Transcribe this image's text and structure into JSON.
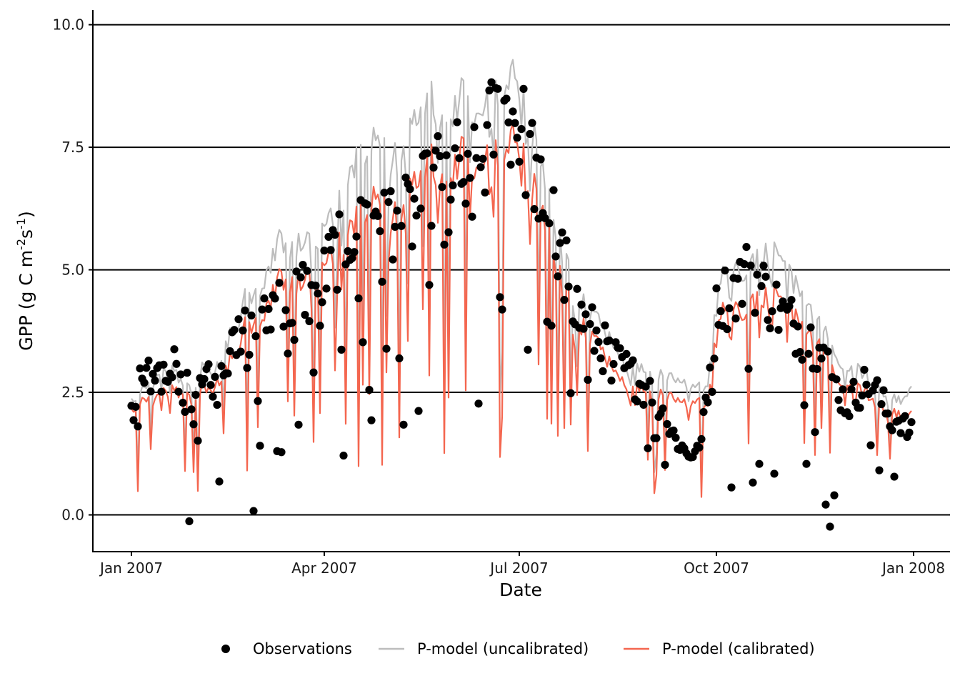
{
  "chart_data": {
    "type": "line",
    "title": "",
    "xlabel": "Date",
    "ylabel": "GPP (g C m",
    "ylabel_sup1": "-2",
    "ylabel_mid": "s",
    "ylabel_sup2": "-1",
    "ylabel_end": ")",
    "x_start": "2007-01-01",
    "x_end": "2007-12-31",
    "xlim": [
      "2006-12-14",
      "2008-01-18"
    ],
    "ylim": [
      -0.75,
      10.3
    ],
    "x_ticks": [
      {
        "date": "2007-01-01",
        "label": "Jan 2007"
      },
      {
        "date": "2007-04-01",
        "label": "Apr 2007"
      },
      {
        "date": "2007-07-01",
        "label": "Jul 2007"
      },
      {
        "date": "2007-10-01",
        "label": "Oct 2007"
      },
      {
        "date": "2008-01-01",
        "label": "Jan 2008"
      }
    ],
    "y_ticks": [
      {
        "value": 0,
        "label": "0.0"
      },
      {
        "value": 2.5,
        "label": "2.5"
      },
      {
        "value": 5,
        "label": "5.0"
      },
      {
        "value": 7.5,
        "label": "7.5"
      },
      {
        "value": 10,
        "label": "10.0"
      }
    ],
    "grid": "horizontal major lines",
    "legend_position": "bottom",
    "series": [
      {
        "name": "Observations",
        "kind": "points",
        "color": "#000000",
        "anchors": [
          [
            1,
            2.2
          ],
          [
            5,
            2.8
          ],
          [
            9,
            2.9
          ],
          [
            13,
            3.0
          ],
          [
            17,
            3.1
          ],
          [
            21,
            3.3
          ],
          [
            25,
            2.7
          ],
          [
            30,
            2.5
          ],
          [
            35,
            2.9
          ],
          [
            40,
            2.6
          ],
          [
            45,
            3.2
          ],
          [
            50,
            3.6
          ],
          [
            55,
            3.9
          ],
          [
            60,
            3.8
          ],
          [
            65,
            4.2
          ],
          [
            70,
            4.8
          ],
          [
            75,
            4.4
          ],
          [
            80,
            4.8
          ],
          [
            85,
            4.6
          ],
          [
            90,
            4.9
          ],
          [
            95,
            5.4
          ],
          [
            100,
            5.8
          ],
          [
            105,
            6.1
          ],
          [
            110,
            6.3
          ],
          [
            115,
            6.5
          ],
          [
            120,
            6.3
          ],
          [
            125,
            6.0
          ],
          [
            130,
            6.2
          ],
          [
            135,
            6.4
          ],
          [
            140,
            6.8
          ],
          [
            145,
            7.2
          ],
          [
            150,
            7.3
          ],
          [
            155,
            7.2
          ],
          [
            160,
            7.0
          ],
          [
            165,
            7.5
          ],
          [
            170,
            8.2
          ],
          [
            175,
            8.5
          ],
          [
            180,
            8.4
          ],
          [
            185,
            7.8
          ],
          [
            190,
            7.2
          ],
          [
            195,
            6.4
          ],
          [
            200,
            5.8
          ],
          [
            205,
            5.0
          ],
          [
            210,
            4.2
          ],
          [
            215,
            3.9
          ],
          [
            220,
            3.6
          ],
          [
            225,
            3.3
          ],
          [
            230,
            3.1
          ],
          [
            235,
            2.9
          ],
          [
            240,
            2.7
          ],
          [
            245,
            2.5
          ],
          [
            250,
            2.0
          ],
          [
            255,
            1.6
          ],
          [
            260,
            1.3
          ],
          [
            265,
            1.3
          ],
          [
            270,
            2.7
          ],
          [
            275,
            4.6
          ],
          [
            280,
            4.6
          ],
          [
            285,
            4.9
          ],
          [
            290,
            5.1
          ],
          [
            295,
            4.8
          ],
          [
            300,
            4.5
          ],
          [
            305,
            4.2
          ],
          [
            310,
            4.0
          ],
          [
            315,
            3.8
          ],
          [
            320,
            3.6
          ],
          [
            325,
            3.2
          ],
          [
            330,
            2.7
          ],
          [
            335,
            2.3
          ],
          [
            340,
            2.6
          ],
          [
            345,
            2.8
          ],
          [
            350,
            2.5
          ],
          [
            355,
            2.0
          ],
          [
            360,
            2.0
          ],
          [
            364,
            1.7
          ]
        ],
        "drops": [
          [
            28,
            -0.13
          ],
          [
            42,
            0.68
          ],
          [
            58,
            0.08
          ],
          [
            61,
            1.41
          ],
          [
            69,
            1.3
          ],
          [
            71,
            1.28
          ],
          [
            79,
            1.84
          ],
          [
            99,
            3.37
          ],
          [
            100,
            1.21
          ],
          [
            112,
            2.55
          ],
          [
            113,
            1.93
          ],
          [
            123,
            5.21
          ],
          [
            128,
            1.84
          ],
          [
            135,
            2.12
          ],
          [
            163,
            2.27
          ],
          [
            174,
            4.19
          ],
          [
            186,
            3.37
          ],
          [
            225,
            2.74
          ],
          [
            272,
            2.51
          ],
          [
            281,
            0.56
          ],
          [
            291,
            0.66
          ],
          [
            294,
            1.04
          ],
          [
            301,
            0.84
          ],
          [
            316,
            1.04
          ],
          [
            325,
            0.21
          ],
          [
            327,
            -0.24
          ],
          [
            329,
            0.4
          ],
          [
            346,
            1.42
          ],
          [
            350,
            0.91
          ],
          [
            357,
            0.78
          ]
        ]
      },
      {
        "name": "P-model (uncalibrated)",
        "kind": "line",
        "color": "#bdbdbd",
        "anchors": [
          [
            1,
            2.4
          ],
          [
            5,
            2.5
          ],
          [
            9,
            2.6
          ],
          [
            13,
            2.8
          ],
          [
            17,
            2.9
          ],
          [
            21,
            3.0
          ],
          [
            25,
            2.6
          ],
          [
            30,
            2.6
          ],
          [
            35,
            3.1
          ],
          [
            40,
            2.9
          ],
          [
            45,
            3.5
          ],
          [
            50,
            4.0
          ],
          [
            55,
            4.6
          ],
          [
            60,
            4.5
          ],
          [
            65,
            5.0
          ],
          [
            70,
            5.6
          ],
          [
            75,
            5.3
          ],
          [
            80,
            5.7
          ],
          [
            85,
            5.5
          ],
          [
            90,
            5.8
          ],
          [
            95,
            6.2
          ],
          [
            100,
            6.5
          ],
          [
            105,
            7.2
          ],
          [
            110,
            7.5
          ],
          [
            115,
            7.6
          ],
          [
            120,
            7.4
          ],
          [
            125,
            7.3
          ],
          [
            130,
            7.6
          ],
          [
            135,
            8.4
          ],
          [
            140,
            8.6
          ],
          [
            145,
            8.2
          ],
          [
            150,
            8.3
          ],
          [
            155,
            8.6
          ],
          [
            160,
            8.3
          ],
          [
            165,
            8.2
          ],
          [
            170,
            8.6
          ],
          [
            175,
            8.9
          ],
          [
            180,
            9.0
          ],
          [
            185,
            8.2
          ],
          [
            190,
            7.6
          ],
          [
            195,
            6.6
          ],
          [
            200,
            5.7
          ],
          [
            205,
            5.0
          ],
          [
            210,
            4.5
          ],
          [
            215,
            4.2
          ],
          [
            220,
            3.9
          ],
          [
            225,
            3.6
          ],
          [
            230,
            3.3
          ],
          [
            235,
            3.1
          ],
          [
            240,
            3.0
          ],
          [
            245,
            2.9
          ],
          [
            250,
            2.9
          ],
          [
            255,
            2.8
          ],
          [
            260,
            2.7
          ],
          [
            265,
            2.6
          ],
          [
            270,
            2.7
          ],
          [
            275,
            4.8
          ],
          [
            280,
            5.0
          ],
          [
            285,
            5.0
          ],
          [
            290,
            5.1
          ],
          [
            295,
            5.4
          ],
          [
            300,
            5.4
          ],
          [
            305,
            5.1
          ],
          [
            310,
            4.8
          ],
          [
            315,
            4.5
          ],
          [
            320,
            4.2
          ],
          [
            325,
            3.7
          ],
          [
            330,
            3.3
          ],
          [
            335,
            2.9
          ],
          [
            340,
            3.0
          ],
          [
            345,
            2.8
          ],
          [
            350,
            2.6
          ],
          [
            355,
            2.4
          ],
          [
            360,
            2.4
          ],
          [
            364,
            2.6
          ]
        ]
      },
      {
        "name": "P-model (calibrated)",
        "kind": "line",
        "color": "#f4664f",
        "anchors": [
          [
            1,
            2.2
          ],
          [
            5,
            2.3
          ],
          [
            9,
            2.3
          ],
          [
            13,
            2.4
          ],
          [
            17,
            2.5
          ],
          [
            21,
            2.6
          ],
          [
            25,
            2.4
          ],
          [
            30,
            2.4
          ],
          [
            35,
            2.7
          ],
          [
            40,
            2.6
          ],
          [
            45,
            3.0
          ],
          [
            50,
            3.5
          ],
          [
            55,
            4.0
          ],
          [
            60,
            3.9
          ],
          [
            65,
            4.3
          ],
          [
            70,
            4.8
          ],
          [
            75,
            4.6
          ],
          [
            80,
            4.9
          ],
          [
            85,
            4.8
          ],
          [
            90,
            5.0
          ],
          [
            95,
            5.4
          ],
          [
            100,
            5.6
          ],
          [
            105,
            6.0
          ],
          [
            110,
            6.3
          ],
          [
            115,
            6.4
          ],
          [
            120,
            6.2
          ],
          [
            125,
            6.1
          ],
          [
            130,
            6.4
          ],
          [
            135,
            7.1
          ],
          [
            140,
            7.3
          ],
          [
            145,
            7.0
          ],
          [
            150,
            7.1
          ],
          [
            155,
            7.4
          ],
          [
            160,
            7.2
          ],
          [
            165,
            7.1
          ],
          [
            170,
            7.4
          ],
          [
            175,
            7.6
          ],
          [
            180,
            7.7
          ],
          [
            185,
            7.1
          ],
          [
            190,
            6.6
          ],
          [
            195,
            5.8
          ],
          [
            200,
            5.0
          ],
          [
            205,
            4.4
          ],
          [
            210,
            4.0
          ],
          [
            215,
            3.7
          ],
          [
            220,
            3.4
          ],
          [
            225,
            3.1
          ],
          [
            230,
            2.9
          ],
          [
            235,
            2.7
          ],
          [
            240,
            2.6
          ],
          [
            245,
            2.5
          ],
          [
            250,
            2.5
          ],
          [
            255,
            2.4
          ],
          [
            260,
            2.3
          ],
          [
            265,
            2.3
          ],
          [
            270,
            2.3
          ],
          [
            275,
            4.1
          ],
          [
            280,
            4.2
          ],
          [
            285,
            4.2
          ],
          [
            290,
            4.3
          ],
          [
            295,
            4.5
          ],
          [
            300,
            4.5
          ],
          [
            305,
            4.3
          ],
          [
            310,
            4.1
          ],
          [
            315,
            3.9
          ],
          [
            320,
            3.7
          ],
          [
            325,
            3.3
          ],
          [
            330,
            2.9
          ],
          [
            335,
            2.6
          ],
          [
            340,
            2.6
          ],
          [
            345,
            2.5
          ],
          [
            350,
            2.3
          ],
          [
            355,
            2.1
          ],
          [
            360,
            2.1
          ],
          [
            364,
            2.1
          ]
        ]
      }
    ]
  },
  "legend": {
    "items": [
      {
        "label": "Observations",
        "color": "#000000"
      },
      {
        "label": "P-model (uncalibrated)",
        "color": "#bdbdbd"
      },
      {
        "label": "P-model (calibrated)",
        "color": "#f4664f"
      }
    ]
  }
}
